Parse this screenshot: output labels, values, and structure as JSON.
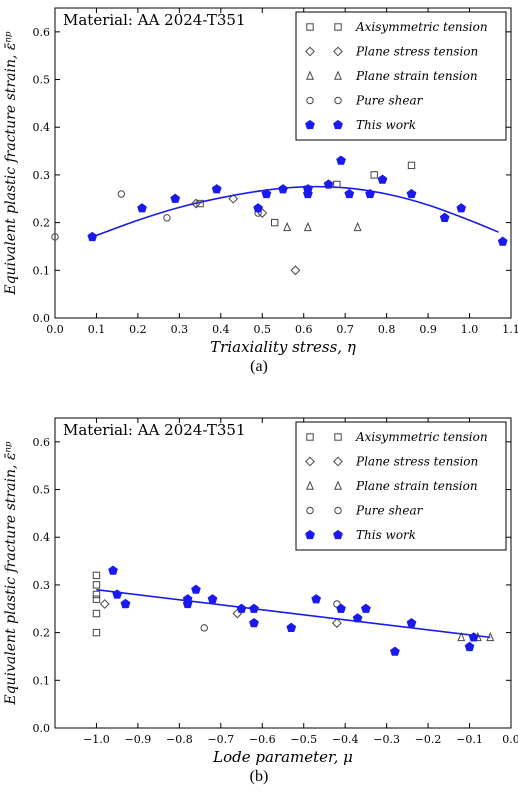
{
  "colors": {
    "this_work": "#1a1aee",
    "axes": "#000000",
    "markers": "#444444"
  },
  "chart_data": [
    {
      "type": "scatter",
      "title": "Material: AA 2024-T351",
      "caption": "(a)",
      "xlabel": "Triaxiality stress, η",
      "ylabel": "Equivalent plastic fracture strain, ε̄ⁿᵖ",
      "xlim": [
        0.0,
        1.1
      ],
      "ylim": [
        0.0,
        0.65
      ],
      "xticks": [
        0.0,
        0.1,
        0.2,
        0.3,
        0.4,
        0.5,
        0.6,
        0.7,
        0.8,
        0.9,
        1.0,
        1.1
      ],
      "xtick_labels": [
        "0.0",
        "0.1",
        "0.2",
        "0.3",
        "0.4",
        "0.5",
        "0.6",
        "0.7",
        "0.8",
        "0.9",
        "1.0",
        "1.1"
      ],
      "yticks": [
        0.0,
        0.1,
        0.2,
        0.3,
        0.4,
        0.5,
        0.6
      ],
      "ytick_labels": [
        "0.0",
        "0.1",
        "0.2",
        "0.3",
        "0.4",
        "0.5",
        "0.6"
      ],
      "legend_position": "top-right",
      "series": [
        {
          "name": "Axisymmetric tension",
          "marker": "square",
          "x": [
            0.35,
            0.53,
            0.61,
            0.68,
            0.77,
            0.86
          ],
          "y": [
            0.24,
            0.2,
            0.27,
            0.28,
            0.3,
            0.32
          ]
        },
        {
          "name": "Plane stress tension",
          "marker": "diamond",
          "x": [
            0.34,
            0.43,
            0.5,
            0.58
          ],
          "y": [
            0.24,
            0.25,
            0.22,
            0.1
          ]
        },
        {
          "name": "Plane strain tension",
          "marker": "triangle",
          "x": [
            0.56,
            0.61,
            0.73
          ],
          "y": [
            0.19,
            0.19,
            0.19
          ]
        },
        {
          "name": "Pure shear",
          "marker": "circle",
          "x": [
            0.0,
            0.16,
            0.27,
            0.49
          ],
          "y": [
            0.17,
            0.26,
            0.21,
            0.22
          ]
        },
        {
          "name": "This work",
          "marker": "pentagon",
          "x": [
            0.09,
            0.21,
            0.29,
            0.39,
            0.49,
            0.51,
            0.55,
            0.61,
            0.61,
            0.66,
            0.69,
            0.71,
            0.76,
            0.79,
            0.86,
            0.94,
            0.98,
            1.08
          ],
          "y": [
            0.17,
            0.23,
            0.25,
            0.27,
            0.23,
            0.26,
            0.27,
            0.27,
            0.26,
            0.28,
            0.33,
            0.26,
            0.26,
            0.29,
            0.26,
            0.21,
            0.23,
            0.16
          ]
        }
      ],
      "fit_curve": {
        "x": [
          0.09,
          0.2,
          0.3,
          0.4,
          0.5,
          0.6,
          0.7,
          0.8,
          0.9,
          1.0,
          1.07
        ],
        "y": [
          0.17,
          0.205,
          0.232,
          0.252,
          0.267,
          0.275,
          0.273,
          0.26,
          0.237,
          0.205,
          0.18
        ]
      }
    },
    {
      "type": "scatter",
      "title": "Material: AA 2024-T351",
      "caption": "(b)",
      "xlabel": "Lode parameter, μ",
      "ylabel": "Equivalent plastic fracture strain, ε̄ⁿᵖ",
      "xlim": [
        -1.1,
        0.0
      ],
      "ylim": [
        0.0,
        0.65
      ],
      "xticks": [
        -1.0,
        -0.9,
        -0.8,
        -0.7,
        -0.6,
        -0.5,
        -0.4,
        -0.3,
        -0.2,
        -0.1,
        0.0
      ],
      "xtick_labels": [
        "−1.0",
        "−0.9",
        "−0.8",
        "−0.7",
        "−0.6",
        "−0.5",
        "−0.4",
        "−0.3",
        "−0.2",
        "−0.1",
        "0.0"
      ],
      "yticks": [
        0.0,
        0.1,
        0.2,
        0.3,
        0.4,
        0.5,
        0.6
      ],
      "ytick_labels": [
        "0.0",
        "0.1",
        "0.2",
        "0.3",
        "0.4",
        "0.5",
        "0.6"
      ],
      "legend_position": "top-right",
      "series": [
        {
          "name": "Axisymmetric tension",
          "marker": "square",
          "x": [
            -1.0,
            -1.0,
            -1.0,
            -1.0,
            -1.0,
            -1.0
          ],
          "y": [
            0.32,
            0.3,
            0.28,
            0.27,
            0.24,
            0.2
          ]
        },
        {
          "name": "Plane stress tension",
          "marker": "diamond",
          "x": [
            -0.98,
            -0.66,
            -0.42
          ],
          "y": [
            0.26,
            0.24,
            0.22
          ]
        },
        {
          "name": "Plane strain tension",
          "marker": "triangle",
          "x": [
            -0.12,
            -0.08,
            -0.05
          ],
          "y": [
            0.19,
            0.19,
            0.19
          ]
        },
        {
          "name": "Pure shear",
          "marker": "circle",
          "x": [
            -0.74,
            -0.42
          ],
          "y": [
            0.21,
            0.26
          ]
        },
        {
          "name": "This work",
          "marker": "pentagon",
          "x": [
            -0.96,
            -0.95,
            -0.93,
            -0.93,
            -0.78,
            -0.78,
            -0.76,
            -0.72,
            -0.65,
            -0.62,
            -0.62,
            -0.53,
            -0.47,
            -0.41,
            -0.37,
            -0.35,
            -0.28,
            -0.24,
            -0.1,
            -0.09
          ],
          "y": [
            0.33,
            0.28,
            0.26,
            0.26,
            0.27,
            0.26,
            0.29,
            0.27,
            0.25,
            0.25,
            0.22,
            0.21,
            0.27,
            0.25,
            0.23,
            0.25,
            0.16,
            0.22,
            0.17,
            0.19
          ]
        }
      ],
      "fit_curve": {
        "x": [
          -1.0,
          -0.05
        ],
        "y": [
          0.29,
          0.19
        ]
      }
    }
  ]
}
